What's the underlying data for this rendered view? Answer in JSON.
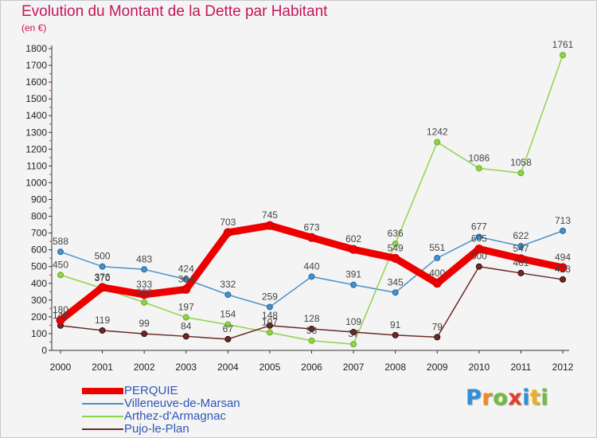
{
  "title": "Evolution du Montant de la Dette par Habitant",
  "subtitle": "(en €)",
  "brand": {
    "letters": [
      "P",
      "r",
      "o",
      "x",
      "i",
      "t",
      "i"
    ],
    "colors": [
      "#2f8fd8",
      "#f08a1c",
      "#6fbf3b",
      "#e43c2a",
      "#2f8fd8",
      "#f0b01c",
      "#6fbf3b"
    ]
  },
  "chart_data": {
    "type": "line",
    "title": "Evolution du Montant de la Dette par Habitant",
    "subtitle": "(en €)",
    "xlabel": "",
    "ylabel": "",
    "x": [
      "2000",
      "2001",
      "2002",
      "2003",
      "2004",
      "2005",
      "2006",
      "2007",
      "2008",
      "2009",
      "2010",
      "2011",
      "2012"
    ],
    "yticks": [
      "0",
      "100",
      "200",
      "300",
      "400",
      "500",
      "600",
      "700",
      "800",
      "900",
      "1000",
      "1100",
      "1200",
      "1300",
      "1400",
      "1500",
      "1600",
      "1700",
      "1800"
    ],
    "ylim": [
      0,
      1800
    ],
    "grid": false,
    "legend_position": "bottom-left",
    "series": [
      {
        "name": "Villeneuve-de-Marsan",
        "color": "#4a90c8",
        "values": [
          588,
          500,
          483,
          424,
          332,
          259,
          440,
          391,
          345,
          551,
          677,
          622,
          713
        ],
        "labels": [
          "588",
          "500",
          "483",
          "424",
          "332",
          "259",
          "440",
          "391",
          "345",
          "551",
          "677",
          "622",
          "713"
        ]
      },
      {
        "name": "Arthez-d'Armagnac",
        "color": "#8fd34a",
        "values": [
          450,
          370,
          286,
          197,
          154,
          107,
          58,
          37,
          636,
          1242,
          1086,
          1058,
          1761
        ],
        "labels": [
          "450",
          "370",
          "286",
          "197",
          "154",
          "107",
          "58",
          "37",
          "636",
          "1242",
          "1086",
          "1058",
          "1761"
        ]
      },
      {
        "name": "Pujo-le-Plan",
        "color": "#6b2a2a",
        "values": [
          148,
          119,
          99,
          84,
          67,
          148,
          128,
          109,
          91,
          79,
          500,
          461,
          423
        ],
        "labels": [
          "148",
          "119",
          "99",
          "84",
          "67",
          "148",
          "128",
          "109",
          "91",
          "79",
          "500",
          "461",
          "423"
        ]
      },
      {
        "name": "PERQUIE",
        "color": "#ee0000",
        "values": [
          180,
          376,
          333,
          364,
          703,
          745,
          673,
          602,
          549,
          400,
          605,
          547,
          494
        ],
        "labels": [
          "180",
          "376",
          "333",
          "364",
          "703",
          "745",
          "673",
          "602",
          "549",
          "400",
          "605",
          "547",
          "494"
        ]
      }
    ]
  },
  "legend": [
    {
      "name": "PERQUIE",
      "color": "#ee0000",
      "label_color": "#2f55b8"
    },
    {
      "name": "Villeneuve-de-Marsan",
      "color": "#4a90c8",
      "label_color": "#2f55b8"
    },
    {
      "name": "Arthez-d'Armagnac",
      "color": "#8fd34a",
      "label_color": "#2f55b8"
    },
    {
      "name": "Pujo-le-Plan",
      "color": "#6b2a2a",
      "label_color": "#2f55b8"
    }
  ]
}
